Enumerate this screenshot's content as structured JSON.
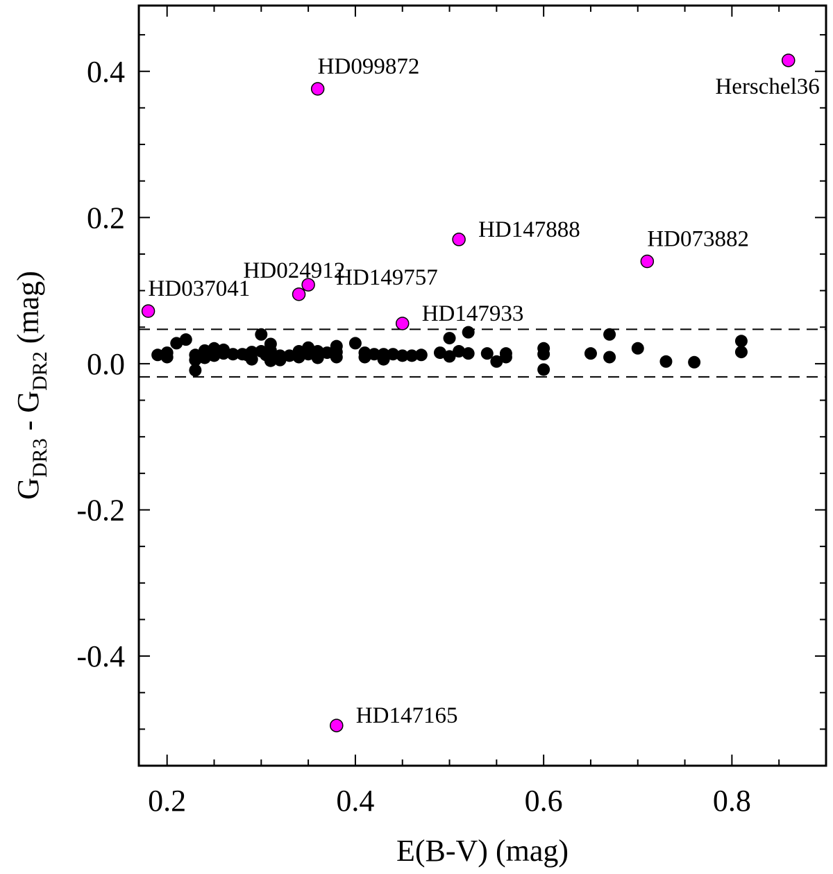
{
  "chart_data": {
    "type": "scatter",
    "xlabel": "E(B-V) (mag)",
    "ylabel": {
      "main": "G",
      "sub1": "DR3",
      "mid": " - G",
      "sub2": "DR2",
      "tail": " (mag)"
    },
    "xlim": [
      0.17,
      0.9
    ],
    "ylim": [
      -0.55,
      0.49
    ],
    "xticks": [
      0.2,
      0.4,
      0.6,
      0.8
    ],
    "xtick_labels": [
      "0.2",
      "0.4",
      "0.6",
      "0.8"
    ],
    "yticks": [
      0.4,
      0.2,
      0.0,
      -0.2,
      -0.4
    ],
    "ytick_labels": [
      "0.4",
      "0.2",
      "0.0",
      "-0.2",
      "-0.4"
    ],
    "grid": false,
    "reference_lines": {
      "style": "dashed",
      "y": [
        0.047,
        -0.018
      ]
    },
    "series": [
      {
        "color": "#000000",
        "points": [
          [
            0.19,
            0.012
          ],
          [
            0.2,
            0.015
          ],
          [
            0.2,
            0.009
          ],
          [
            0.21,
            0.028
          ],
          [
            0.22,
            0.033
          ],
          [
            0.23,
            0.012
          ],
          [
            0.23,
            -0.009
          ],
          [
            0.23,
            0.005
          ],
          [
            0.24,
            0.018
          ],
          [
            0.24,
            0.008
          ],
          [
            0.245,
            0.013
          ],
          [
            0.25,
            0.021
          ],
          [
            0.25,
            0.011
          ],
          [
            0.26,
            0.014
          ],
          [
            0.26,
            0.019
          ],
          [
            0.27,
            0.013
          ],
          [
            0.28,
            0.013
          ],
          [
            0.285,
            0.012
          ],
          [
            0.29,
            0.016
          ],
          [
            0.29,
            0.006
          ],
          [
            0.3,
            0.04
          ],
          [
            0.3,
            0.017
          ],
          [
            0.305,
            0.012
          ],
          [
            0.31,
            0.027
          ],
          [
            0.31,
            0.018
          ],
          [
            0.31,
            0.004
          ],
          [
            0.32,
            0.011
          ],
          [
            0.32,
            0.005
          ],
          [
            0.33,
            0.011
          ],
          [
            0.34,
            0.017
          ],
          [
            0.34,
            0.009
          ],
          [
            0.35,
            0.022
          ],
          [
            0.35,
            0.013
          ],
          [
            0.36,
            0.017
          ],
          [
            0.36,
            0.008
          ],
          [
            0.37,
            0.015
          ],
          [
            0.38,
            0.024
          ],
          [
            0.38,
            0.016
          ],
          [
            0.38,
            0.009
          ],
          [
            0.4,
            0.028
          ],
          [
            0.41,
            0.015
          ],
          [
            0.41,
            0.009
          ],
          [
            0.42,
            0.013
          ],
          [
            0.43,
            0.013
          ],
          [
            0.43,
            0.006
          ],
          [
            0.44,
            0.013
          ],
          [
            0.45,
            0.011
          ],
          [
            0.46,
            0.011
          ],
          [
            0.47,
            0.012
          ],
          [
            0.49,
            0.015
          ],
          [
            0.5,
            0.035
          ],
          [
            0.5,
            0.01
          ],
          [
            0.51,
            0.017
          ],
          [
            0.52,
            0.043
          ],
          [
            0.52,
            0.014
          ],
          [
            0.54,
            0.014
          ],
          [
            0.55,
            0.003
          ],
          [
            0.56,
            0.014
          ],
          [
            0.56,
            0.009
          ],
          [
            0.6,
            0.021
          ],
          [
            0.6,
            0.013
          ],
          [
            0.6,
            -0.008
          ],
          [
            0.65,
            0.014
          ],
          [
            0.67,
            0.04
          ],
          [
            0.67,
            0.009
          ],
          [
            0.7,
            0.021
          ],
          [
            0.73,
            0.003
          ],
          [
            0.76,
            0.002
          ],
          [
            0.81,
            0.031
          ],
          [
            0.81,
            0.016
          ]
        ]
      },
      {
        "color": "#ff00ff",
        "points": [
          {
            "x": 0.18,
            "y": 0.072,
            "label": "HD037041"
          },
          {
            "x": 0.34,
            "y": 0.095,
            "label": "HD024912"
          },
          {
            "x": 0.35,
            "y": 0.108,
            "label": "HD149757"
          },
          {
            "x": 0.36,
            "y": 0.376,
            "label": "HD099872"
          },
          {
            "x": 0.38,
            "y": -0.495,
            "label": "HD147165"
          },
          {
            "x": 0.45,
            "y": 0.055,
            "label": "HD147933"
          },
          {
            "x": 0.51,
            "y": 0.17,
            "label": "HD147888"
          },
          {
            "x": 0.71,
            "y": 0.14,
            "label": "HD073882"
          },
          {
            "x": 0.86,
            "y": 0.415,
            "label": "Herschel36"
          }
        ]
      }
    ]
  }
}
